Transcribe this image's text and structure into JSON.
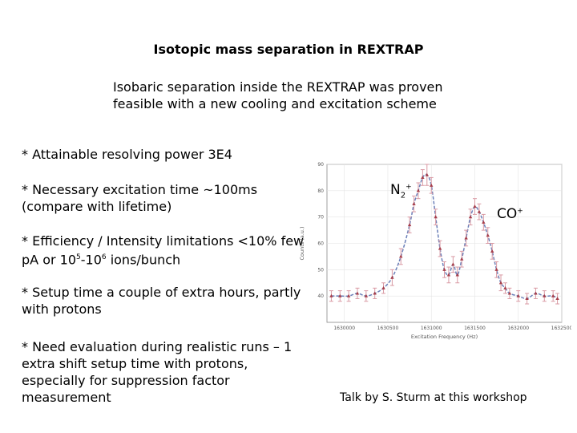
{
  "slide": {
    "title": "Isotopic mass separation in REXTRAP",
    "intro": "Isobaric separation inside the REXTRAP was proven feasible with a new cooling and excitation scheme",
    "bullets": {
      "b1": "* Attainable resolving power 3E4",
      "b2": "* Necessary excitation time ~100ms (compare with lifetime)",
      "b3_pre": "* Efficiency / Intensity limitations <10% few pA or 10",
      "b3_sup1": "5",
      "b3_mid": "-10",
      "b3_sup2": "6",
      "b3_post": " ions/bunch",
      "b4": "* Setup time a couple of extra hours, partly with protons",
      "b5": "* Need evaluation during realistic runs – 1 extra shift setup time with protons, especially for suppression factor measurement"
    },
    "labels": {
      "n2": "N",
      "n2_sub": "2",
      "n2_sup": "+",
      "co": "CO",
      "co_sup": "+"
    },
    "credit": "Talk by S. Sturm at this workshop"
  },
  "chart_data": {
    "type": "scatter",
    "xlabel": "Excitation Frequency (Hz)",
    "ylabel": "Counts (a.u.)",
    "xlim": [
      1629800,
      1632500
    ],
    "ylim": [
      30,
      90
    ],
    "xticks": [
      "1630000",
      "1630500",
      "1631000",
      "1631500",
      "1632000",
      "1632500"
    ],
    "yticks": [
      "40",
      "50",
      "60",
      "70",
      "80",
      "90"
    ],
    "x": [
      1629850,
      1629950,
      1630050,
      1630150,
      1630250,
      1630350,
      1630450,
      1630550,
      1630650,
      1630750,
      1630800,
      1630850,
      1630900,
      1630950,
      1631000,
      1631050,
      1631100,
      1631150,
      1631200,
      1631250,
      1631300,
      1631350,
      1631400,
      1631450,
      1631500,
      1631550,
      1631600,
      1631650,
      1631700,
      1631750,
      1631800,
      1631850,
      1631900,
      1632000,
      1632100,
      1632200,
      1632300,
      1632400,
      1632450
    ],
    "y": [
      40,
      40,
      40,
      41,
      40,
      41,
      43,
      47,
      55,
      67,
      75,
      80,
      85,
      86,
      82,
      70,
      58,
      50,
      48,
      52,
      48,
      54,
      62,
      70,
      74,
      72,
      68,
      63,
      57,
      50,
      45,
      43,
      41,
      40,
      39,
      41,
      40,
      40,
      39
    ],
    "err": [
      2,
      2,
      2,
      2,
      2,
      2,
      2,
      3,
      3,
      3,
      3,
      3,
      3,
      4,
      3,
      3,
      3,
      3,
      3,
      3,
      3,
      3,
      3,
      3,
      3,
      3,
      3,
      3,
      3,
      3,
      3,
      2,
      2,
      2,
      2,
      2,
      2,
      2,
      2
    ],
    "fit_color": "#6a7fb8",
    "point_color": "#a63d4a",
    "error_color": "#d99aa4"
  }
}
